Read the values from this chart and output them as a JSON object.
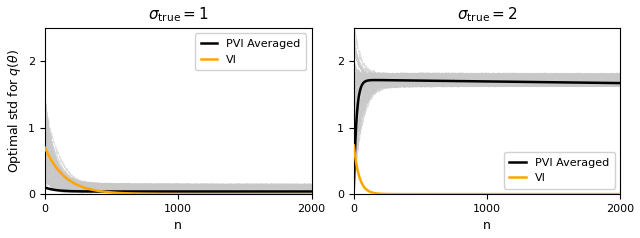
{
  "sigma_true_values": [
    1,
    2
  ],
  "n_max": 2000,
  "n_trajectories": 60,
  "ylim": [
    0,
    2.5
  ],
  "yticks": [
    0,
    1,
    2
  ],
  "xticks": [
    0,
    1000,
    2000
  ],
  "xlabel": "n",
  "ylabel": "Optimal std for $q(\\theta)$",
  "pvi_color": "#000000",
  "vi_color": "orange",
  "traj_color": "#c8c8c8",
  "traj_alpha": 0.6,
  "pvi_lw": 1.8,
  "vi_lw": 1.8,
  "traj_lw": 0.4,
  "legend_loc_1": "upper right",
  "legend_loc_2": "lower right",
  "title_fontsize": 11,
  "label_fontsize": 9,
  "tick_fontsize": 8,
  "legend_fontsize": 8
}
